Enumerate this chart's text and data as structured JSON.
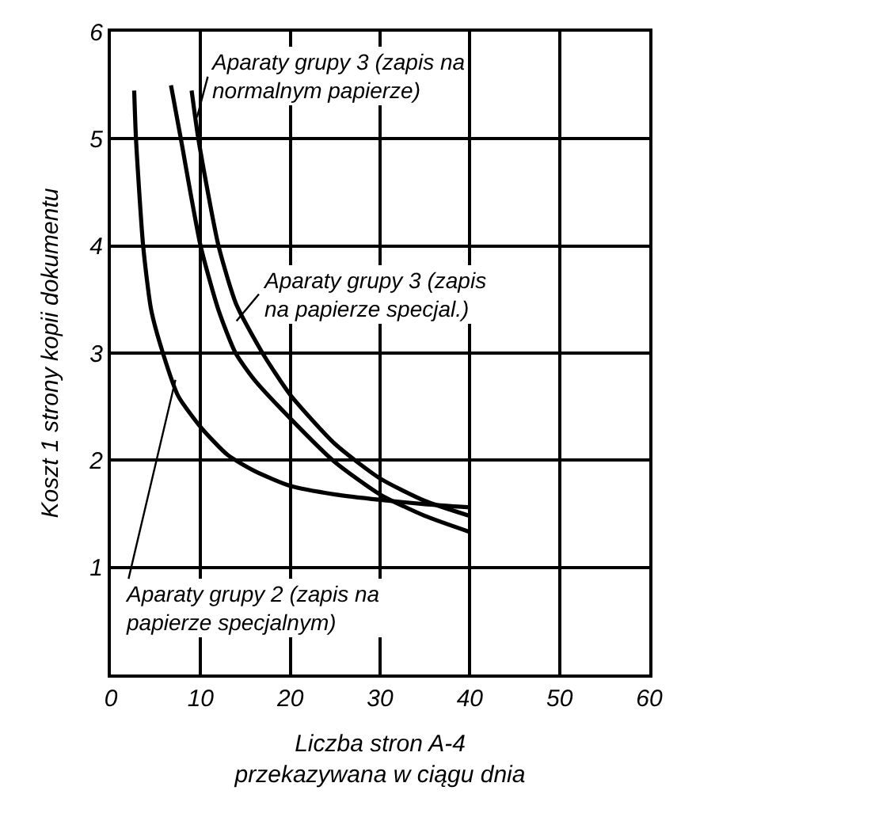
{
  "chart_data": {
    "type": "line",
    "xlabel": "Liczba stron A-4\nprzekazywana w ciągu dnia",
    "ylabel": "Koszt 1 strony kopii dokumentu",
    "xlim": [
      0,
      60
    ],
    "ylim": [
      0,
      6
    ],
    "xticks": [
      0,
      10,
      20,
      30,
      40,
      50,
      60
    ],
    "yticks": [
      1,
      2,
      3,
      4,
      5,
      6
    ],
    "grid": true,
    "marker": "none",
    "line_style": "solid",
    "series": [
      {
        "color": "#000000",
        "x": [
          2.6,
          2.8,
          3.6,
          4.5,
          5.8,
          7.5,
          10,
          13,
          16,
          20,
          25,
          30,
          35,
          40
        ],
        "values": [
          5.45,
          5.0,
          4.0,
          3.4,
          3.0,
          2.6,
          2.31,
          2.05,
          1.9,
          1.76,
          1.68,
          1.63,
          1.59,
          1.56
        ]
      },
      {
        "color": "#000000",
        "x": [
          6.7,
          7.8,
          10,
          12,
          13.9,
          16,
          20,
          25,
          30,
          35,
          40
        ],
        "values": [
          5.5,
          5.0,
          4.0,
          3.4,
          3.0,
          2.75,
          2.39,
          1.98,
          1.68,
          1.48,
          1.33
        ]
      },
      {
        "color": "#000000",
        "x": [
          9,
          9.75,
          12,
          14,
          16.9,
          20,
          25,
          30,
          35,
          40
        ],
        "values": [
          5.45,
          5.0,
          4.0,
          3.45,
          3.0,
          2.61,
          2.15,
          1.83,
          1.62,
          1.48
        ]
      }
    ],
    "annotations": [
      {
        "text": "Aparaty grupy 3 (zapis na\nnormalnym papierze)",
        "x": 9.6,
        "y": 5.2
      },
      {
        "text": "Aparaty grupy 3 (zapis\nna papierze specjal.)",
        "x": 14,
        "y": 3.3
      },
      {
        "text": "Aparaty grupy 2 (zapis na\npapierze specjalnym)",
        "x": 7.2,
        "y": 2.75
      }
    ]
  }
}
